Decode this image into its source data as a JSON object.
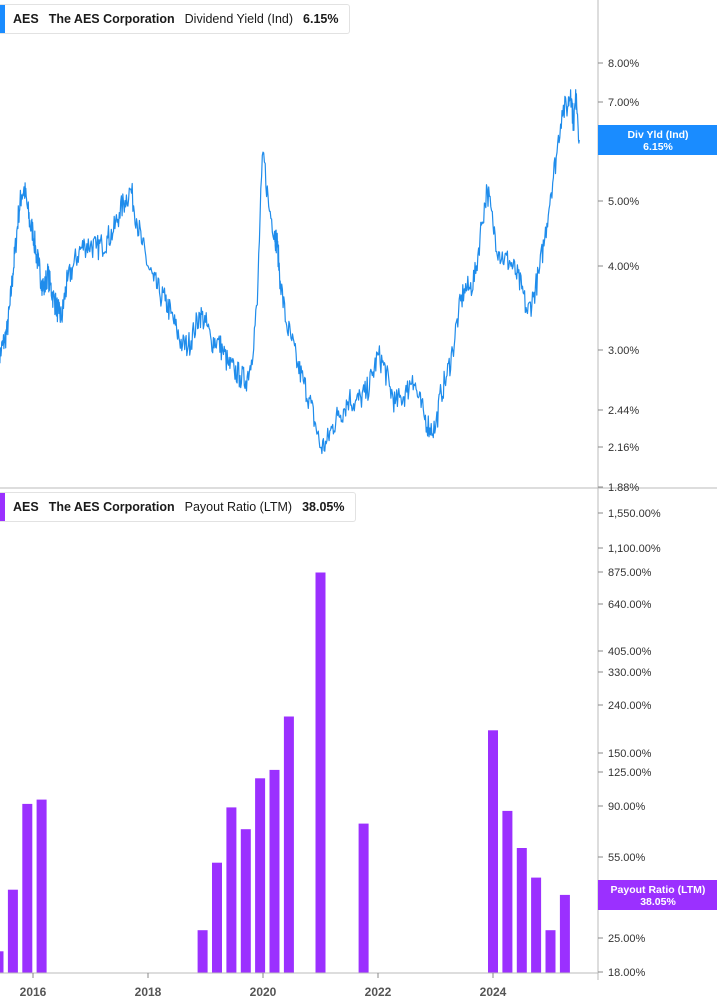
{
  "colors": {
    "line": "#1f8ceb",
    "bar": "#9b30ff",
    "axis": "#bbbbbb",
    "tag_top": "#1a8cff",
    "tag_bottom": "#9b30ff"
  },
  "legend_top": {
    "ticker": "AES",
    "name": "The AES Corporation",
    "metric": "Dividend Yield (Ind)",
    "value": "6.15%"
  },
  "legend_bottom": {
    "ticker": "AES",
    "name": "The AES Corporation",
    "metric": "Payout Ratio (LTM)",
    "value": "38.05%"
  },
  "tag_top": {
    "label": "Div Yld (Ind)",
    "value": "6.15%"
  },
  "tag_bottom": {
    "label": "Payout Ratio (LTM)",
    "value": "38.05%"
  },
  "x_labels": [
    "2016",
    "2018",
    "2020",
    "2022",
    "2024"
  ],
  "chart_data": [
    {
      "type": "line",
      "scale": "log",
      "series": [
        {
          "name": "Dividend Yield (Ind)",
          "x": [
            2015.4,
            2015.45,
            2015.5,
            2015.55,
            2015.6,
            2015.65,
            2015.7,
            2015.75,
            2015.8,
            2015.85,
            2015.9,
            2015.95,
            2016.0,
            2016.05,
            2016.1,
            2016.15,
            2016.2,
            2016.25,
            2016.3,
            2016.35,
            2016.4,
            2016.45,
            2016.5,
            2016.55,
            2016.6,
            2016.7,
            2016.8,
            2016.9,
            2017.0,
            2017.1,
            2017.2,
            2017.3,
            2017.4,
            2017.5,
            2017.6,
            2017.7,
            2017.8,
            2017.9,
            2018.0,
            2018.1,
            2018.2,
            2018.3,
            2018.4,
            2018.5,
            2018.6,
            2018.7,
            2018.8,
            2018.9,
            2019.0,
            2019.1,
            2019.2,
            2019.3,
            2019.4,
            2019.5,
            2019.6,
            2019.7,
            2019.8,
            2019.9,
            2020.0,
            2020.1,
            2020.2,
            2020.22,
            2020.25,
            2020.3,
            2020.4,
            2020.5,
            2020.6,
            2020.7,
            2020.8,
            2020.9,
            2021.0,
            2021.1,
            2021.2,
            2021.3,
            2021.4,
            2021.5,
            2021.6,
            2021.7,
            2021.8,
            2021.9,
            2022.0,
            2022.1,
            2022.2,
            2022.3,
            2022.4,
            2022.5,
            2022.6,
            2022.7,
            2022.8,
            2022.9,
            2023.0,
            2023.1,
            2023.2,
            2023.3,
            2023.4,
            2023.5,
            2023.6,
            2023.7,
            2023.8,
            2023.9,
            2024.0,
            2024.1,
            2024.2,
            2024.3,
            2024.4,
            2024.5,
            2024.6,
            2024.7,
            2024.8,
            2024.9,
            2025.0,
            2025.1,
            2025.2,
            2025.3,
            2025.35,
            2025.4,
            2025.45,
            2025.5
          ],
          "values": [
            2.9,
            3.0,
            3.1,
            3.2,
            3.5,
            3.9,
            4.3,
            4.8,
            5.1,
            5.2,
            4.9,
            4.6,
            4.5,
            4.2,
            4.0,
            3.8,
            3.7,
            3.9,
            3.75,
            3.6,
            3.5,
            3.4,
            3.35,
            3.6,
            3.8,
            4.0,
            4.2,
            4.3,
            4.3,
            4.25,
            4.3,
            4.4,
            4.5,
            4.8,
            5.0,
            5.2,
            4.7,
            4.3,
            4.0,
            3.8,
            3.65,
            3.55,
            3.4,
            3.2,
            3.05,
            3.05,
            3.2,
            3.4,
            3.3,
            3.1,
            3.1,
            3.0,
            2.85,
            2.8,
            2.75,
            2.7,
            2.9,
            3.5,
            5.9,
            4.9,
            4.5,
            4.4,
            4.3,
            3.8,
            3.3,
            3.1,
            2.85,
            2.7,
            2.55,
            2.35,
            2.15,
            2.18,
            2.3,
            2.4,
            2.45,
            2.55,
            2.5,
            2.55,
            2.6,
            2.75,
            2.95,
            2.85,
            2.65,
            2.5,
            2.55,
            2.6,
            2.75,
            2.55,
            2.4,
            2.3,
            2.3,
            2.6,
            2.75,
            3.0,
            3.4,
            3.7,
            3.7,
            3.9,
            4.6,
            5.2,
            4.6,
            4.2,
            4.1,
            4.05,
            3.9,
            3.7,
            3.4,
            3.6,
            3.9,
            4.4,
            5.1,
            5.8,
            6.8,
            6.9,
            7.3,
            6.5,
            7.2,
            6.15
          ]
        }
      ]
    },
    {
      "type": "bar",
      "scale": "log",
      "series": [
        {
          "name": "Payout Ratio (LTM)",
          "x": [
            2015.4,
            2015.65,
            2015.9,
            2016.15,
            2018.95,
            2019.2,
            2019.45,
            2019.7,
            2019.95,
            2020.2,
            2020.45,
            2021.0,
            2021.75,
            2024.0,
            2024.25,
            2024.5,
            2024.75,
            2025.0,
            2025.25
          ],
          "values": [
            22.0,
            40.0,
            92.0,
            96.0,
            27.0,
            52.0,
            89.0,
            72.0,
            118.0,
            128.0,
            215.0,
            870.0,
            76.0,
            188.0,
            86.0,
            60.0,
            45.0,
            27.0,
            38.05
          ]
        }
      ]
    }
  ]
}
